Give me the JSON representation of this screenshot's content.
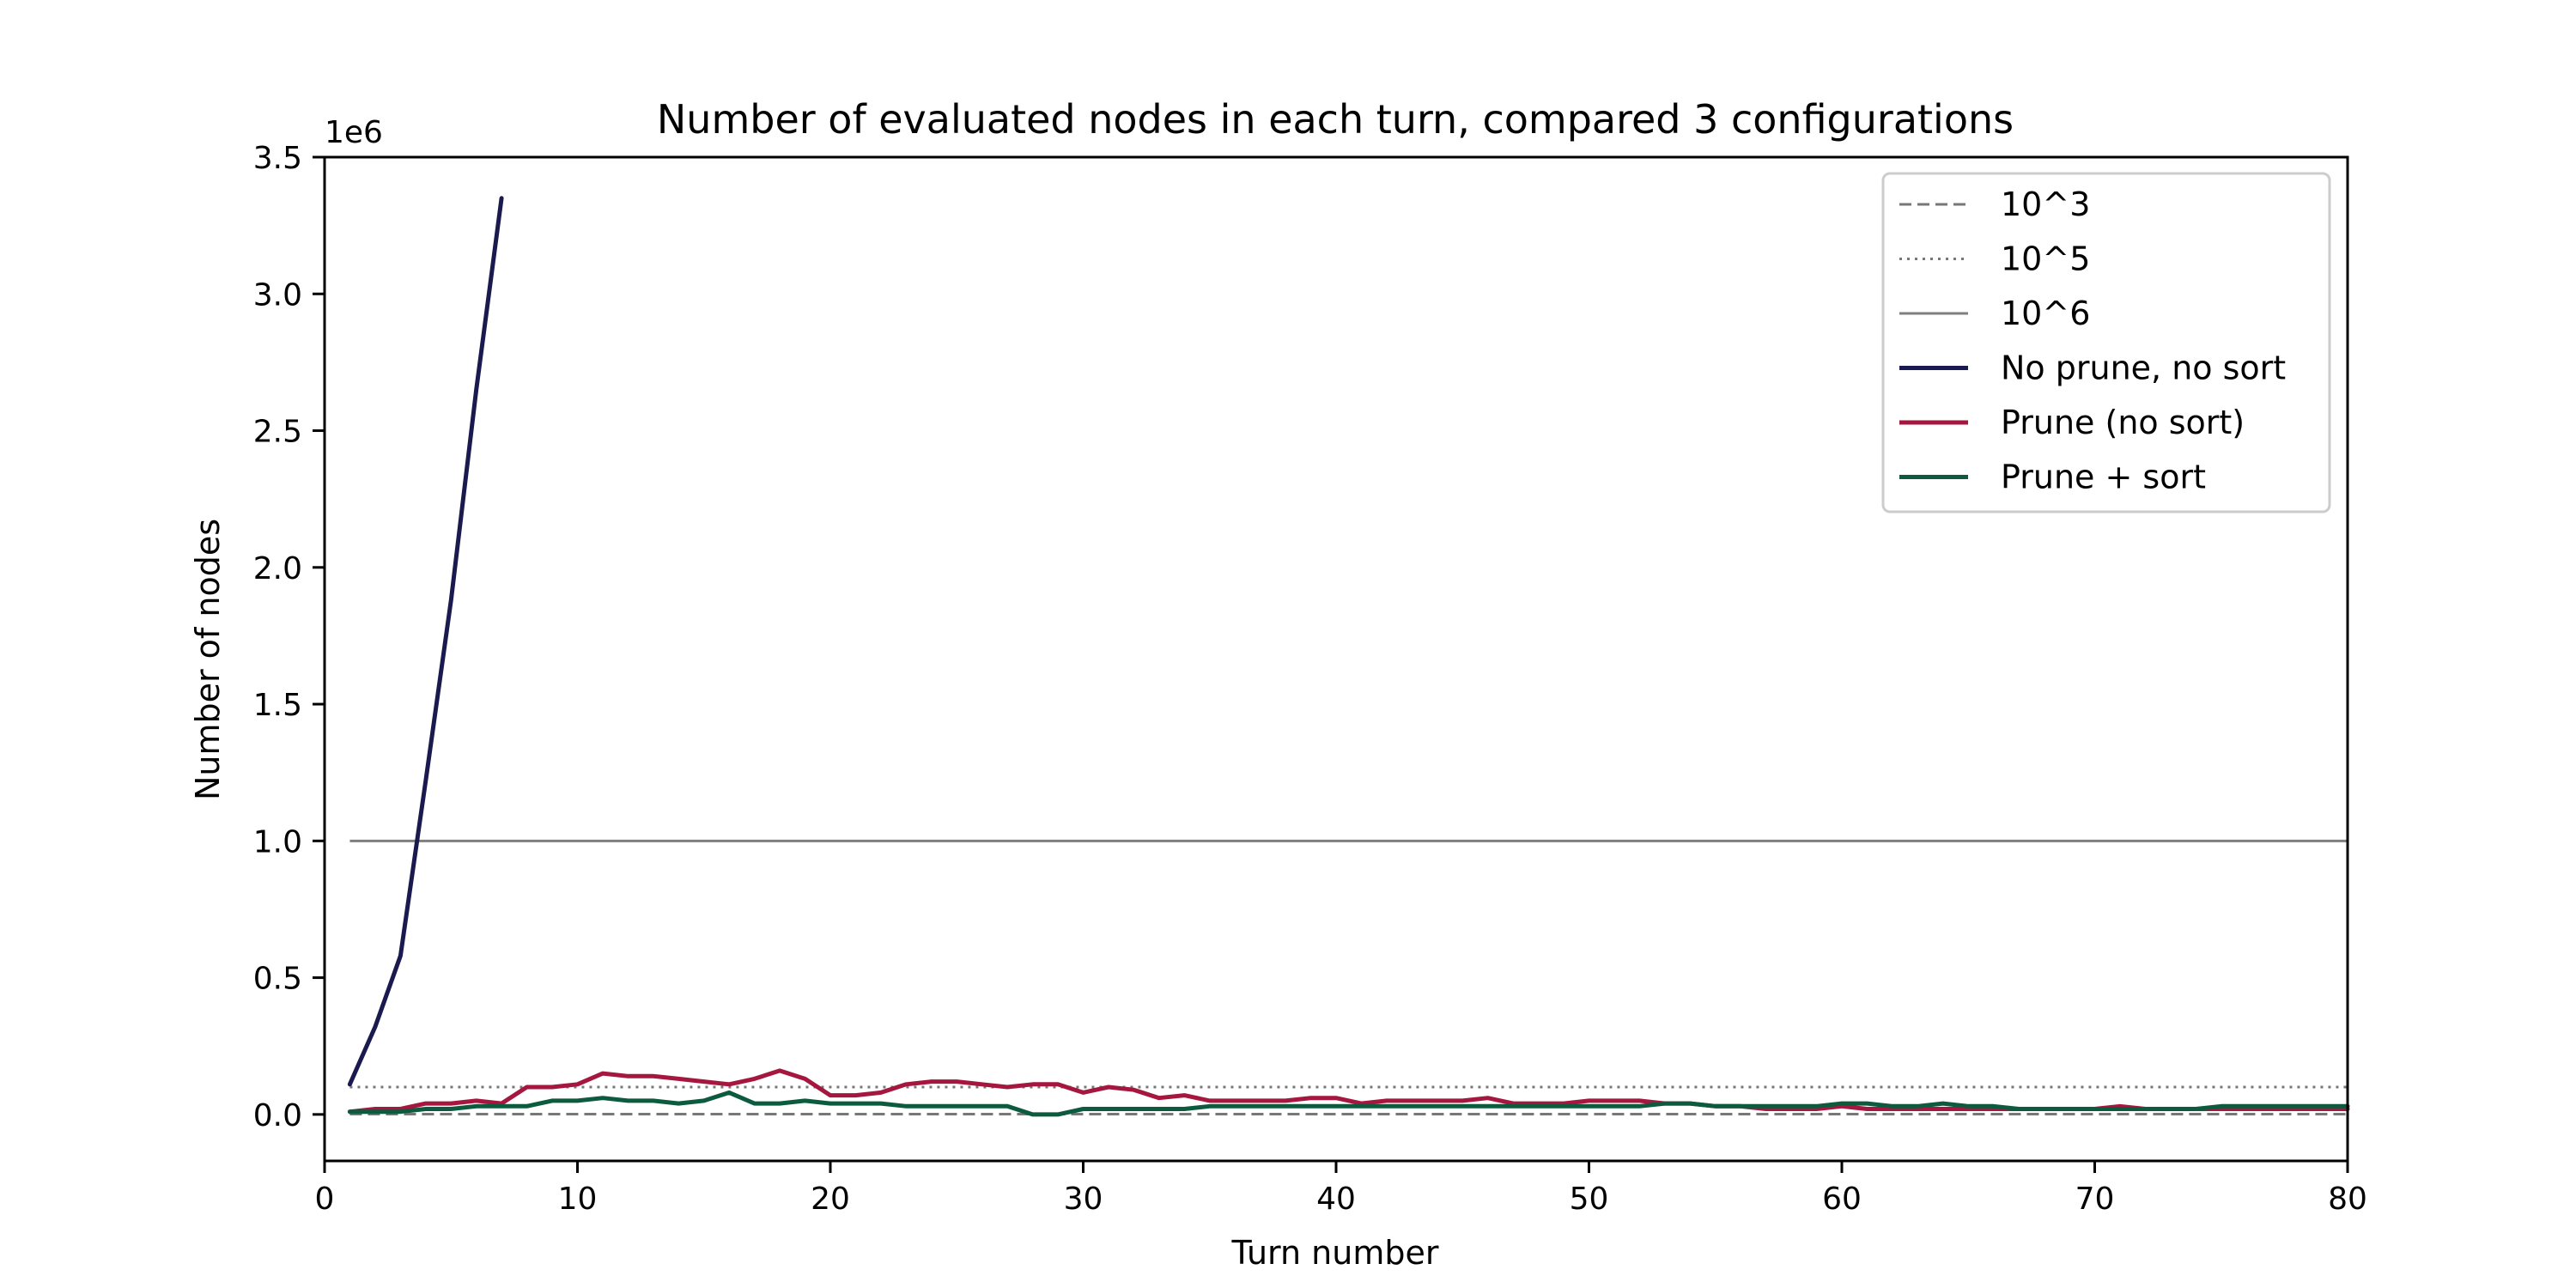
{
  "chart_data": {
    "type": "line",
    "title": "Number of evaluated nodes in each turn, compared 3 configurations",
    "xlabel": "Turn number",
    "ylabel": "Number of nodes",
    "y_offset_label": "1e6",
    "xlim": [
      0,
      80
    ],
    "ylim": [
      -0.17,
      3.5
    ],
    "x_ticks": [
      0,
      10,
      20,
      30,
      40,
      50,
      60,
      70,
      80
    ],
    "x_tick_labels": [
      "0",
      "10",
      "20",
      "30",
      "40",
      "50",
      "60",
      "70",
      "80"
    ],
    "y_ticks": [
      0,
      0.5,
      1.0,
      1.5,
      2.0,
      2.5,
      3.0,
      3.5
    ],
    "y_tick_labels": [
      "0.0",
      "0.5",
      "1.0",
      "1.5",
      "2.0",
      "2.5",
      "3.0",
      "3.5"
    ],
    "y_unit_multiplier": 1000000,
    "grid": false,
    "legend_position": "top-right",
    "reference_lines": [
      {
        "name": "10^3",
        "y": 0.001,
        "x_start": 1,
        "x_end": 80,
        "style": "dashed",
        "color": "#777777"
      },
      {
        "name": "10^5",
        "y": 0.1,
        "x_start": 1,
        "x_end": 80,
        "style": "dotted",
        "color": "#777777"
      },
      {
        "name": "10^6",
        "y": 1.0,
        "x_start": 1,
        "x_end": 80,
        "style": "solid",
        "color": "#7f7f7f"
      }
    ],
    "series": [
      {
        "name": "No prune, no sort",
        "color": "#1b1a4e",
        "x": [
          1,
          2,
          3,
          4,
          5,
          6,
          7
        ],
        "values": [
          0.11,
          0.32,
          0.58,
          1.22,
          1.88,
          2.65,
          3.35
        ]
      },
      {
        "name": "Prune (no sort)",
        "color": "#a5173f",
        "x": [
          1,
          2,
          3,
          4,
          5,
          6,
          7,
          8,
          9,
          10,
          11,
          12,
          13,
          14,
          15,
          16,
          17,
          18,
          19,
          20,
          21,
          22,
          23,
          24,
          25,
          26,
          27,
          28,
          29,
          30,
          31,
          32,
          33,
          34,
          35,
          36,
          37,
          38,
          39,
          40,
          41,
          42,
          43,
          44,
          45,
          46,
          47,
          48,
          49,
          50,
          51,
          52,
          53,
          54,
          55,
          56,
          57,
          58,
          59,
          60,
          61,
          62,
          63,
          64,
          65,
          66,
          67,
          68,
          69,
          70,
          71,
          72,
          73,
          74,
          75,
          76,
          77,
          78,
          79,
          80
        ],
        "values": [
          0.01,
          0.02,
          0.02,
          0.04,
          0.04,
          0.05,
          0.04,
          0.1,
          0.1,
          0.11,
          0.15,
          0.14,
          0.14,
          0.13,
          0.12,
          0.11,
          0.13,
          0.16,
          0.13,
          0.07,
          0.07,
          0.08,
          0.11,
          0.12,
          0.12,
          0.11,
          0.1,
          0.11,
          0.11,
          0.08,
          0.1,
          0.09,
          0.06,
          0.07,
          0.05,
          0.05,
          0.05,
          0.05,
          0.06,
          0.06,
          0.04,
          0.05,
          0.05,
          0.05,
          0.05,
          0.06,
          0.04,
          0.04,
          0.04,
          0.05,
          0.05,
          0.05,
          0.04,
          0.04,
          0.03,
          0.03,
          0.02,
          0.02,
          0.02,
          0.03,
          0.02,
          0.02,
          0.02,
          0.02,
          0.02,
          0.02,
          0.02,
          0.02,
          0.02,
          0.02,
          0.03,
          0.02,
          0.02,
          0.02,
          0.02,
          0.02,
          0.02,
          0.02,
          0.02,
          0.02
        ]
      },
      {
        "name": "Prune + sort",
        "color": "#0d5b3e",
        "x": [
          1,
          2,
          3,
          4,
          5,
          6,
          7,
          8,
          9,
          10,
          11,
          12,
          13,
          14,
          15,
          16,
          17,
          18,
          19,
          20,
          21,
          22,
          23,
          24,
          25,
          26,
          27,
          28,
          29,
          30,
          31,
          32,
          33,
          34,
          35,
          36,
          37,
          38,
          39,
          40,
          41,
          42,
          43,
          44,
          45,
          46,
          47,
          48,
          49,
          50,
          51,
          52,
          53,
          54,
          55,
          56,
          57,
          58,
          59,
          60,
          61,
          62,
          63,
          64,
          65,
          66,
          67,
          68,
          69,
          70,
          71,
          72,
          73,
          74,
          75,
          76,
          77,
          78,
          79,
          80
        ],
        "values": [
          0.01,
          0.01,
          0.01,
          0.02,
          0.02,
          0.03,
          0.03,
          0.03,
          0.05,
          0.05,
          0.06,
          0.05,
          0.05,
          0.04,
          0.05,
          0.08,
          0.04,
          0.04,
          0.05,
          0.04,
          0.04,
          0.04,
          0.03,
          0.03,
          0.03,
          0.03,
          0.03,
          0.0,
          0.0,
          0.02,
          0.02,
          0.02,
          0.02,
          0.02,
          0.03,
          0.03,
          0.03,
          0.03,
          0.03,
          0.03,
          0.03,
          0.03,
          0.03,
          0.03,
          0.03,
          0.03,
          0.03,
          0.03,
          0.03,
          0.03,
          0.03,
          0.03,
          0.04,
          0.04,
          0.03,
          0.03,
          0.03,
          0.03,
          0.03,
          0.04,
          0.04,
          0.03,
          0.03,
          0.04,
          0.03,
          0.03,
          0.02,
          0.02,
          0.02,
          0.02,
          0.02,
          0.02,
          0.02,
          0.02,
          0.03,
          0.03,
          0.03,
          0.03,
          0.03,
          0.03
        ]
      }
    ]
  }
}
